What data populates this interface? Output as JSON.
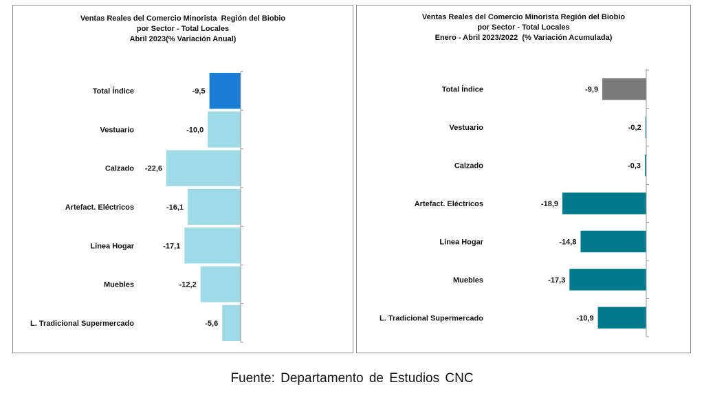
{
  "chart_data": [
    {
      "type": "bar",
      "orientation": "horizontal",
      "title_lines": [
        "Ventas Reales del Comercio Minorista  Región del Biobio",
        "por Sector - Total Locales",
        "Abril 2023(% Variación Anual)"
      ],
      "categories": [
        "Total Índice",
        "Vestuario",
        "Calzado",
        "Artefact. Eléctricos",
        "Línea Hogar",
        "Muebles",
        "L. Tradicional Supermercado"
      ],
      "values": [
        -9.5,
        -10.0,
        -22.6,
        -16.1,
        -17.1,
        -12.2,
        -5.6
      ],
      "value_labels": [
        "-9,5",
        "-10,0",
        "-22,6",
        "-16,1",
        "-17,1",
        "-12,2",
        "-5,6"
      ],
      "colors": [
        "#1a7fd4",
        "#9fdbe6",
        "#9fdbe6",
        "#9fdbe6",
        "#9fdbe6",
        "#9fdbe6",
        "#9fdbe6"
      ],
      "xlim": [
        -22.6,
        0
      ],
      "grid": false
    },
    {
      "type": "bar",
      "orientation": "horizontal",
      "title_lines": [
        "Ventas Reales del Comercio Minorista Región del Biobio",
        "por Sector - Total Locales",
        "Enero - Abril 2023/2022  (% Variación Acumulada)"
      ],
      "categories": [
        "Total Índice",
        "Vestuario",
        "Calzado",
        "Artefact. Eléctricos",
        "Línea Hogar",
        "Muebles",
        "L. Tradicional Supermercado"
      ],
      "values": [
        -9.9,
        -0.2,
        -0.3,
        -18.9,
        -14.8,
        -17.3,
        -10.9
      ],
      "value_labels": [
        "-9,9",
        "-0,2",
        "-0,3",
        "-18,9",
        "-14,8",
        "-17,3",
        "-10,9"
      ],
      "colors": [
        "#7a7a7a",
        "#007a8c",
        "#007a8c",
        "#007a8c",
        "#007a8c",
        "#007a8c",
        "#007a8c"
      ],
      "xlim": [
        -18.9,
        0
      ],
      "grid": false
    }
  ],
  "footer": "Fuente: Departamento de Estudios CNC"
}
